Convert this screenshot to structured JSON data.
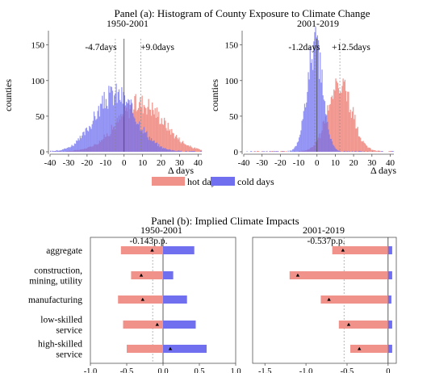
{
  "panel_a": {
    "title": "Panel (a): Histogram of County Exposure to Climate Change",
    "left": {
      "subtitle": "1950-2001",
      "xlabel": "Δ days",
      "ylabel": "counties",
      "mean_cold_label": "-4.7days",
      "mean_hot_label": "+9.0days"
    },
    "right": {
      "subtitle": "2001-2019",
      "xlabel": "Δ days",
      "ylabel": "counties",
      "mean_cold_label": "-1.2days",
      "mean_hot_label": "+12.5days"
    },
    "legend": {
      "hot": "hot days",
      "cold": "cold days"
    }
  },
  "panel_b": {
    "title": "Panel (b): Implied Climate Impacts",
    "left": {
      "subtitle": "1950-2001",
      "total_label": "-0.143p.p."
    },
    "right": {
      "subtitle": "2001-2019",
      "total_label": "-0.537p.p."
    }
  },
  "colors": {
    "hot": "#f0928a",
    "cold": "#6f6ff0",
    "overlap": "#8a55c8",
    "axis": "#555555"
  },
  "chart_data": [
    {
      "type": "histogram",
      "panel": "a-left",
      "xlim": [
        -40,
        42
      ],
      "ylim": [
        0,
        170
      ],
      "xticks": [
        -40,
        -30,
        -20,
        -10,
        0,
        10,
        20,
        30,
        40
      ],
      "yticks": [
        0,
        50,
        100,
        150
      ],
      "grid": false,
      "series": [
        {
          "name": "hot days",
          "mean": 9.0,
          "sd": 12.5,
          "peak": 68
        },
        {
          "name": "cold days",
          "mean": -4.7,
          "sd": 11.0,
          "peak": 80
        }
      ],
      "vlines": [
        -4.7,
        0,
        9.0
      ]
    },
    {
      "type": "histogram",
      "panel": "a-right",
      "xlim": [
        -40,
        42
      ],
      "ylim": [
        0,
        170
      ],
      "xticks": [
        -40,
        -30,
        -20,
        -10,
        0,
        10,
        20,
        30,
        40
      ],
      "yticks": [
        0,
        50,
        100,
        150
      ],
      "grid": false,
      "series": [
        {
          "name": "hot days",
          "mean": 12.5,
          "sd": 6.5,
          "peak": 95
        },
        {
          "name": "cold days",
          "mean": -1.2,
          "sd": 4.2,
          "peak": 150
        }
      ],
      "vlines": [
        -1.2,
        0,
        12.5
      ]
    },
    {
      "type": "bar",
      "panel": "b-left",
      "orientation": "horizontal",
      "xlim": [
        -1.0,
        1.0
      ],
      "xticks": [
        -1.0,
        -0.5,
        0.0,
        0.5,
        1.0
      ],
      "tick_labels": [
        "-1.0",
        "-0.5",
        "0.0",
        "0.5",
        "1.0"
      ],
      "categories": [
        "aggregate",
        "construction,\nmining, utility",
        "manufacturing",
        "low-skilled\nservice",
        "high-skilled\nservice"
      ],
      "series": [
        {
          "name": "hot days",
          "values": [
            -0.58,
            -0.44,
            -0.62,
            -0.55,
            -0.5
          ]
        },
        {
          "name": "cold days",
          "values": [
            0.43,
            0.14,
            0.33,
            0.45,
            0.6
          ]
        }
      ],
      "net": [
        -0.15,
        -0.3,
        -0.28,
        -0.08,
        0.1
      ],
      "reference_line": -0.143
    },
    {
      "type": "bar",
      "panel": "b-right",
      "orientation": "horizontal",
      "xlim": [
        -1.65,
        0.1
      ],
      "xticks": [
        -1.5,
        -1.0,
        -0.5,
        0.0
      ],
      "tick_labels": [
        "-1.5",
        "-1.0",
        "-0.5",
        "0"
      ],
      "categories": [
        "aggregate",
        "construction,\nmining, utility",
        "manufacturing",
        "low-skilled\nservice",
        "high-skilled\nservice"
      ],
      "series": [
        {
          "name": "hot days",
          "values": [
            -0.68,
            -1.2,
            -0.82,
            -0.6,
            -0.46
          ]
        },
        {
          "name": "cold days",
          "values": [
            0.05,
            0.05,
            0.04,
            0.05,
            0.05
          ]
        }
      ],
      "net": [
        -0.55,
        -1.1,
        -0.72,
        -0.48,
        -0.35
      ],
      "reference_line": -0.537
    }
  ]
}
